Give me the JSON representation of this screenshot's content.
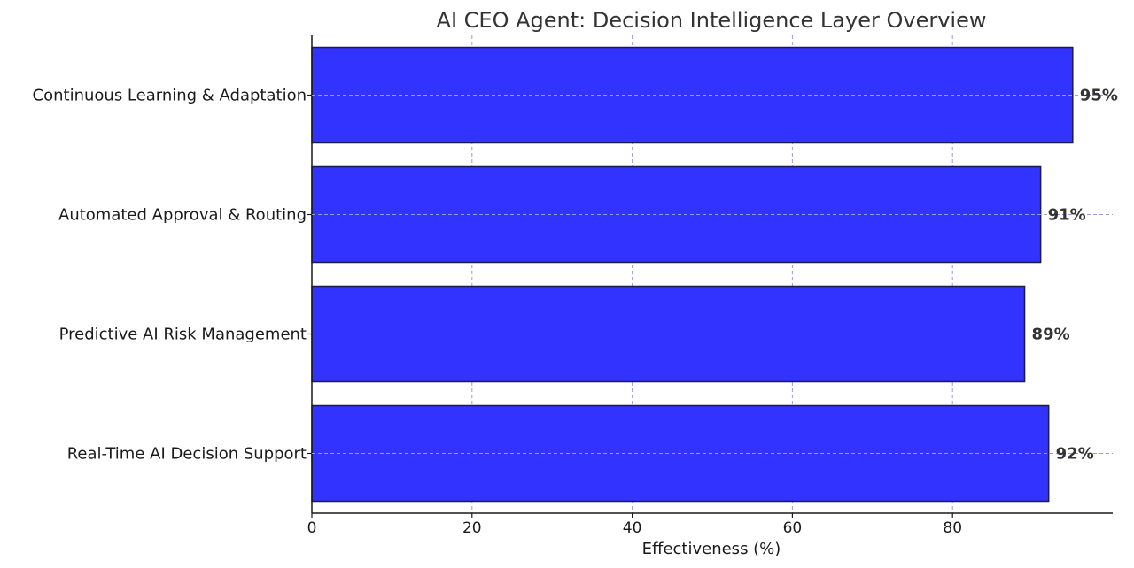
{
  "chart_data": {
    "type": "bar",
    "orientation": "horizontal",
    "title": "AI CEO Agent: Decision Intelligence Layer Overview",
    "xlabel": "Effectiveness (%)",
    "ylabel": "",
    "categories": [
      "Real-Time AI Decision Support",
      "Predictive AI Risk Management",
      "Automated Approval & Routing",
      "Continuous Learning & Adaptation"
    ],
    "values": [
      92,
      89,
      91,
      95
    ],
    "data_labels": [
      "92%",
      "89%",
      "91%",
      "95%"
    ],
    "xlim": [
      0,
      100
    ],
    "xticks": [
      0,
      20,
      40,
      60,
      80
    ],
    "grid": true,
    "grid_style": "dashed",
    "colors": {
      "bar": "#3333ff",
      "bar_edge": "#1a1a4d",
      "grid": "#9a9ad8",
      "axis": "#1a1a1a"
    }
  }
}
